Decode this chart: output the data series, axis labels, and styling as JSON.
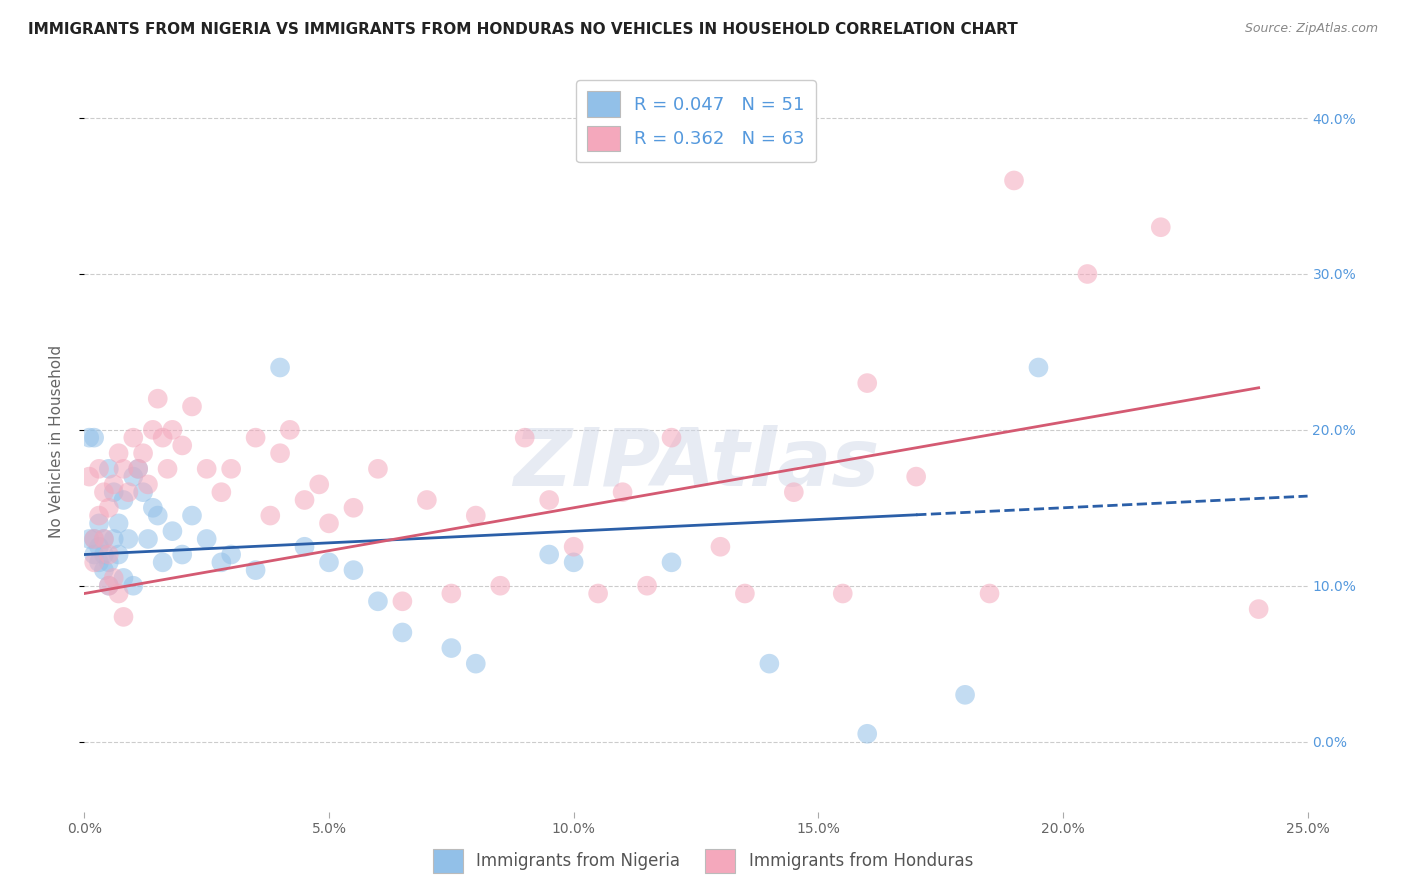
{
  "title": "IMMIGRANTS FROM NIGERIA VS IMMIGRANTS FROM HONDURAS NO VEHICLES IN HOUSEHOLD CORRELATION CHART",
  "source": "Source: ZipAtlas.com",
  "ylabel": "No Vehicles in Household",
  "xlim": [
    0.0,
    0.25
  ],
  "ylim": [
    -0.045,
    0.43
  ],
  "yticks": [
    0.0,
    0.1,
    0.2,
    0.3,
    0.4
  ],
  "xticks": [
    0.0,
    0.05,
    0.1,
    0.15,
    0.2,
    0.25
  ],
  "nigeria_color": "#92c0e8",
  "honduras_color": "#f4a8bc",
  "nigeria_R": 0.047,
  "nigeria_N": 51,
  "honduras_R": 0.362,
  "honduras_N": 63,
  "nigeria_line_color": "#2b5fa8",
  "honduras_line_color": "#d45a72",
  "nigeria_line_intercept": 0.12,
  "nigeria_line_slope": 0.15,
  "honduras_line_intercept": 0.095,
  "honduras_line_slope": 0.55,
  "background_color": "#ffffff",
  "grid_color": "#cccccc",
  "title_fontsize": 11,
  "axis_label_fontsize": 11,
  "tick_fontsize": 10,
  "right_tick_color": "#5599dd",
  "watermark": "ZIPAtlas",
  "nigeria_scatter": [
    [
      0.001,
      0.195
    ],
    [
      0.001,
      0.13
    ],
    [
      0.002,
      0.195
    ],
    [
      0.002,
      0.12
    ],
    [
      0.002,
      0.13
    ],
    [
      0.003,
      0.115
    ],
    [
      0.003,
      0.125
    ],
    [
      0.003,
      0.14
    ],
    [
      0.004,
      0.12
    ],
    [
      0.004,
      0.11
    ],
    [
      0.004,
      0.13
    ],
    [
      0.005,
      0.175
    ],
    [
      0.005,
      0.115
    ],
    [
      0.005,
      0.1
    ],
    [
      0.006,
      0.16
    ],
    [
      0.006,
      0.13
    ],
    [
      0.007,
      0.14
    ],
    [
      0.007,
      0.12
    ],
    [
      0.008,
      0.155
    ],
    [
      0.008,
      0.105
    ],
    [
      0.009,
      0.13
    ],
    [
      0.01,
      0.17
    ],
    [
      0.01,
      0.1
    ],
    [
      0.011,
      0.175
    ],
    [
      0.012,
      0.16
    ],
    [
      0.013,
      0.13
    ],
    [
      0.014,
      0.15
    ],
    [
      0.015,
      0.145
    ],
    [
      0.016,
      0.115
    ],
    [
      0.018,
      0.135
    ],
    [
      0.02,
      0.12
    ],
    [
      0.022,
      0.145
    ],
    [
      0.025,
      0.13
    ],
    [
      0.028,
      0.115
    ],
    [
      0.03,
      0.12
    ],
    [
      0.035,
      0.11
    ],
    [
      0.04,
      0.24
    ],
    [
      0.045,
      0.125
    ],
    [
      0.05,
      0.115
    ],
    [
      0.055,
      0.11
    ],
    [
      0.06,
      0.09
    ],
    [
      0.065,
      0.07
    ],
    [
      0.075,
      0.06
    ],
    [
      0.08,
      0.05
    ],
    [
      0.095,
      0.12
    ],
    [
      0.1,
      0.115
    ],
    [
      0.12,
      0.115
    ],
    [
      0.14,
      0.05
    ],
    [
      0.16,
      0.005
    ],
    [
      0.18,
      0.03
    ],
    [
      0.195,
      0.24
    ]
  ],
  "honduras_scatter": [
    [
      0.001,
      0.17
    ],
    [
      0.002,
      0.13
    ],
    [
      0.002,
      0.115
    ],
    [
      0.003,
      0.175
    ],
    [
      0.003,
      0.145
    ],
    [
      0.004,
      0.16
    ],
    [
      0.004,
      0.13
    ],
    [
      0.005,
      0.15
    ],
    [
      0.005,
      0.12
    ],
    [
      0.005,
      0.1
    ],
    [
      0.006,
      0.165
    ],
    [
      0.006,
      0.105
    ],
    [
      0.007,
      0.185
    ],
    [
      0.007,
      0.095
    ],
    [
      0.008,
      0.175
    ],
    [
      0.008,
      0.08
    ],
    [
      0.009,
      0.16
    ],
    [
      0.01,
      0.195
    ],
    [
      0.011,
      0.175
    ],
    [
      0.012,
      0.185
    ],
    [
      0.013,
      0.165
    ],
    [
      0.014,
      0.2
    ],
    [
      0.015,
      0.22
    ],
    [
      0.016,
      0.195
    ],
    [
      0.017,
      0.175
    ],
    [
      0.018,
      0.2
    ],
    [
      0.02,
      0.19
    ],
    [
      0.022,
      0.215
    ],
    [
      0.025,
      0.175
    ],
    [
      0.028,
      0.16
    ],
    [
      0.03,
      0.175
    ],
    [
      0.035,
      0.195
    ],
    [
      0.038,
      0.145
    ],
    [
      0.04,
      0.185
    ],
    [
      0.042,
      0.2
    ],
    [
      0.045,
      0.155
    ],
    [
      0.048,
      0.165
    ],
    [
      0.05,
      0.14
    ],
    [
      0.055,
      0.15
    ],
    [
      0.06,
      0.175
    ],
    [
      0.065,
      0.09
    ],
    [
      0.07,
      0.155
    ],
    [
      0.075,
      0.095
    ],
    [
      0.08,
      0.145
    ],
    [
      0.085,
      0.1
    ],
    [
      0.09,
      0.195
    ],
    [
      0.095,
      0.155
    ],
    [
      0.1,
      0.125
    ],
    [
      0.105,
      0.095
    ],
    [
      0.11,
      0.16
    ],
    [
      0.115,
      0.1
    ],
    [
      0.12,
      0.195
    ],
    [
      0.13,
      0.125
    ],
    [
      0.135,
      0.095
    ],
    [
      0.145,
      0.16
    ],
    [
      0.155,
      0.095
    ],
    [
      0.16,
      0.23
    ],
    [
      0.17,
      0.17
    ],
    [
      0.185,
      0.095
    ],
    [
      0.19,
      0.36
    ],
    [
      0.205,
      0.3
    ],
    [
      0.22,
      0.33
    ],
    [
      0.24,
      0.085
    ]
  ]
}
